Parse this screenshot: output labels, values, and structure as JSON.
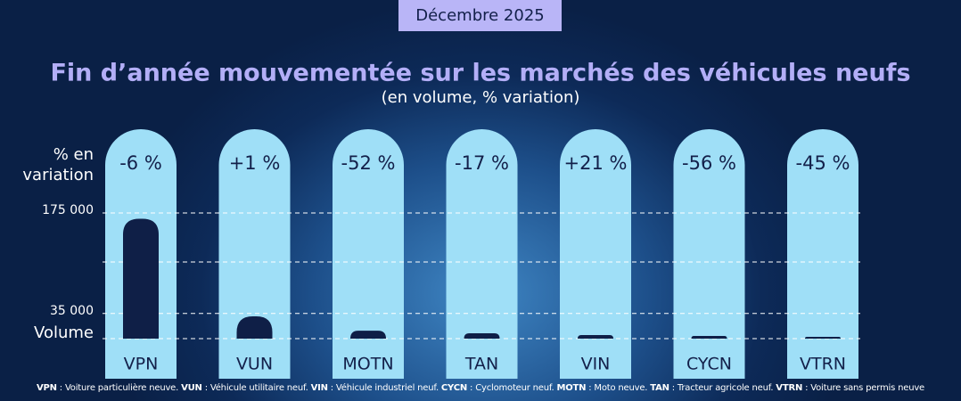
{
  "chart_data": {
    "type": "bar",
    "badge": "Décembre 2025",
    "title": "Fin d’année mouvementée sur les marchés des véhicules neufs",
    "subtitle": "(en volume, % variation)",
    "variation_label": "% en variation",
    "y_label": "Volume",
    "categories": [
      "VPN",
      "VUN",
      "MOTN",
      "TAN",
      "VIN",
      "CYCN",
      "VTRN"
    ],
    "values": [
      167000,
      31000,
      11000,
      7500,
      5000,
      3700,
      2500
    ],
    "color": "#0f1f47",
    "pill_color": "#9fdff7",
    "variations": {
      "values": [
        -6,
        1,
        -52,
        -17,
        21,
        -56,
        -45
      ],
      "value_labels": [
        "-6 %",
        "+1 %",
        "-52 %",
        "-17 %",
        "+21 %",
        "-56 %",
        "-45 %"
      ]
    },
    "ylim": [
      0,
      175000
    ],
    "yticks": [
      {
        "value": 35000,
        "label": "35 000"
      },
      {
        "value": 175000,
        "label": "175 000"
      }
    ],
    "grid": true,
    "footnote": [
      {
        "abbr": "VPN",
        "text": " : Voiture particulière neuve. "
      },
      {
        "abbr": "VUN",
        "text": " : Véhicule utilitaire neuf. "
      },
      {
        "abbr": "VIN",
        "text": " : Véhicule industriel neuf. "
      },
      {
        "abbr": "CYCN",
        "text": " : Cyclomoteur neuf. "
      },
      {
        "abbr": "MOTN",
        "text": " : Moto neuve. "
      },
      {
        "abbr": "TAN",
        "text": " : Tracteur agricole neuf. "
      },
      {
        "abbr": "VTRN",
        "text": " : Voiture sans permis neuve"
      }
    ]
  }
}
